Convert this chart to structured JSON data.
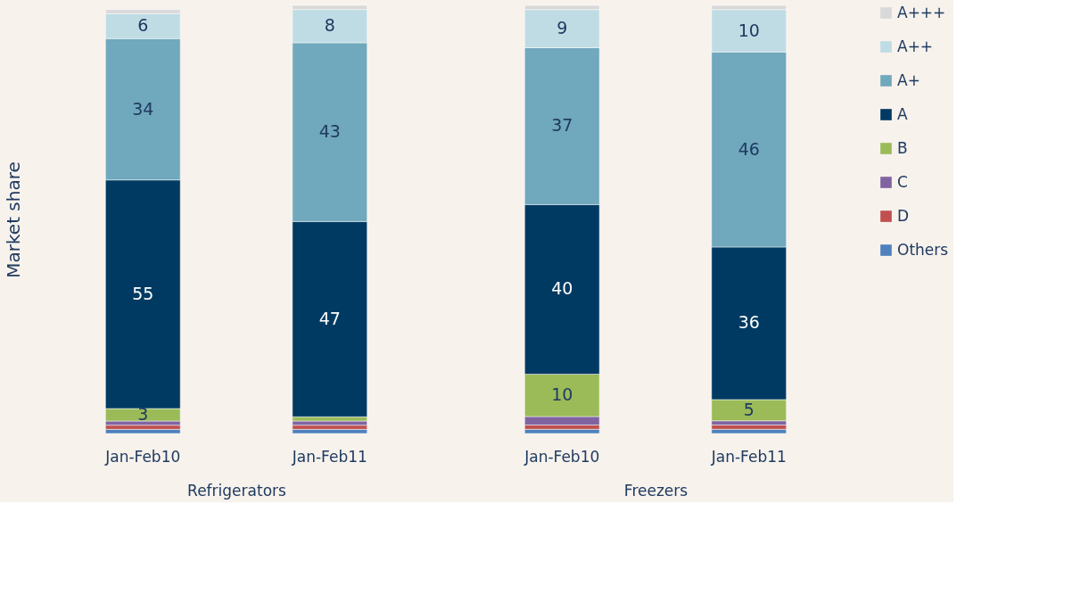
{
  "chart_data": [
    {
      "type": "bar",
      "stacked": true,
      "xlabel": "Refrigerators",
      "ylabel": "Market share",
      "categories": [
        "Jan-Feb10",
        "Jan-Feb11"
      ],
      "tick_labels": "x",
      "legend": "right",
      "series": [
        {
          "name": "Others",
          "color": "#4f81bd",
          "values": [
            1,
            1
          ],
          "value_labels": [
            null,
            null
          ]
        },
        {
          "name": "D",
          "color": "#c0504d",
          "values": [
            1,
            1
          ],
          "value_labels": [
            null,
            null
          ]
        },
        {
          "name": "C",
          "color": "#8064a2",
          "values": [
            1,
            1
          ],
          "value_labels": [
            null,
            null
          ]
        },
        {
          "name": "B",
          "color": "#9bbb59",
          "values": [
            3,
            1
          ],
          "value_labels": [
            "3",
            null
          ]
        },
        {
          "name": "A",
          "color": "#003a62",
          "values": [
            55,
            47
          ],
          "value_labels": [
            "55",
            "47"
          ]
        },
        {
          "name": "A+",
          "color": "#70a8bd",
          "values": [
            34,
            43
          ],
          "value_labels": [
            "34",
            "43"
          ]
        },
        {
          "name": "A++",
          "color": "#bfdce4",
          "values": [
            6,
            8
          ],
          "value_labels": [
            "6",
            "8"
          ]
        },
        {
          "name": "A+++",
          "color": "#d9d9d9",
          "values": [
            1,
            1
          ],
          "value_labels": [
            null,
            null
          ]
        }
      ]
    },
    {
      "type": "bar",
      "stacked": true,
      "xlabel": "Freezers",
      "categories": [
        "Jan-Feb10",
        "Jan-Feb11"
      ],
      "tick_labels": "x",
      "legend": "right",
      "series": [
        {
          "name": "Others",
          "color": "#4f81bd",
          "values": [
            1,
            1
          ],
          "value_labels": [
            null,
            null
          ]
        },
        {
          "name": "D",
          "color": "#c0504d",
          "values": [
            1,
            1
          ],
          "value_labels": [
            null,
            null
          ]
        },
        {
          "name": "C",
          "color": "#8064a2",
          "values": [
            2,
            1
          ],
          "value_labels": [
            null,
            null
          ]
        },
        {
          "name": "B",
          "color": "#9bbb59",
          "values": [
            10,
            5
          ],
          "value_labels": [
            "10",
            "5"
          ]
        },
        {
          "name": "A",
          "color": "#003a62",
          "values": [
            40,
            36
          ],
          "value_labels": [
            "40",
            "36"
          ]
        },
        {
          "name": "A+",
          "color": "#70a8bd",
          "values": [
            37,
            46
          ],
          "value_labels": [
            "37",
            "46"
          ]
        },
        {
          "name": "A++",
          "color": "#bfdce4",
          "values": [
            9,
            10
          ],
          "value_labels": [
            "9",
            "10"
          ]
        },
        {
          "name": "A+++",
          "color": "#d9d9d9",
          "values": [
            1,
            1
          ],
          "value_labels": [
            null,
            null
          ]
        }
      ]
    }
  ]
}
